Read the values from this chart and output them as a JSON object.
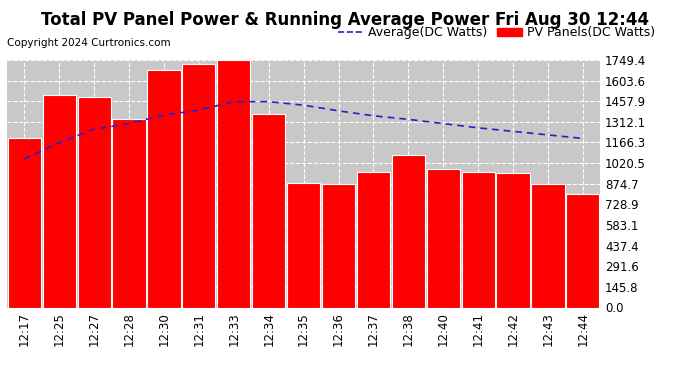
{
  "title": "Total PV Panel Power & Running Average Power Fri Aug 30 12:44",
  "copyright": "Copyright 2024 Curtronics.com",
  "legend_avg": "Average(DC Watts)",
  "legend_pv": "PV Panels(DC Watts)",
  "categories": [
    "12:17",
    "12:25",
    "12:27",
    "12:28",
    "12:30",
    "12:31",
    "12:33",
    "12:34",
    "12:35",
    "12:36",
    "12:37",
    "12:38",
    "12:40",
    "12:41",
    "12:42",
    "12:43",
    "12:44"
  ],
  "bar_values": [
    1195,
    1500,
    1490,
    1330,
    1680,
    1720,
    1749,
    1370,
    880,
    870,
    960,
    1080,
    980,
    960,
    950,
    875,
    800
  ],
  "avg_values": [
    1050,
    1165,
    1260,
    1300,
    1360,
    1395,
    1455,
    1455,
    1430,
    1390,
    1355,
    1330,
    1300,
    1270,
    1245,
    1220,
    1195
  ],
  "yticks": [
    0.0,
    145.8,
    291.6,
    437.4,
    583.1,
    728.9,
    874.7,
    1020.5,
    1166.3,
    1312.1,
    1457.9,
    1603.6,
    1749.4
  ],
  "ymax": 1749.4,
  "ymin": 0.0,
  "bar_color": "#ff0000",
  "bar_edge_color": "#ffffff",
  "avg_line_color": "#2222cc",
  "bg_color": "#ffffff",
  "plot_bg_color": "#c8c8c8",
  "grid_color": "#ffffff",
  "title_fontsize": 12,
  "tick_fontsize": 8.5,
  "legend_fontsize": 9,
  "copyright_fontsize": 7.5
}
